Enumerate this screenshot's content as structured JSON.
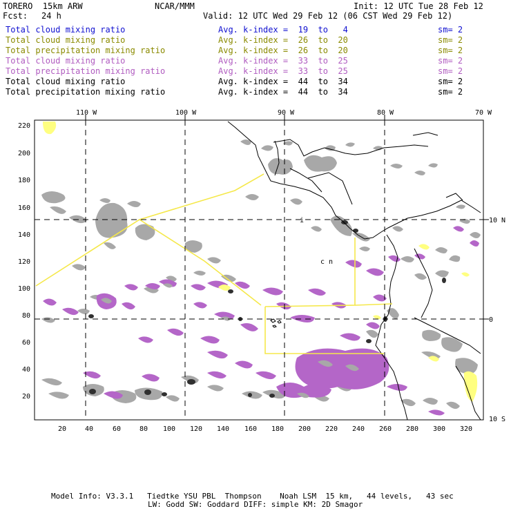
{
  "header": {
    "model": "TORERO  15km ARW",
    "org": "NCAR/MMM",
    "init": "Init: 12 UTC Tue 28 Feb 12",
    "fcst_label": "Fcst:",
    "fcst_value": "24 h",
    "valid": "Valid: 12 UTC Wed 29 Feb 12 (06 CST Wed 29 Feb 12)"
  },
  "legend": [
    {
      "field": "Total cloud mixing ratio",
      "kindex": "Avg. k-index =  19  to   4",
      "sm": "sm= 2",
      "color": "#1010d0"
    },
    {
      "field": "Total cloud mixing ratio",
      "kindex": "Avg. k-index =  26  to  20",
      "sm": "sm= 2",
      "color": "#8a8a00"
    },
    {
      "field": "Total precipitation mixing ratio",
      "kindex": "Avg. k-index =  26  to  20",
      "sm": "sm= 2",
      "color": "#8a8a00"
    },
    {
      "field": "Total cloud mixing ratio",
      "kindex": "Avg. k-index =  33  to  25",
      "sm": "sm= 2",
      "color": "#b05cc0"
    },
    {
      "field": "Total precipitation mixing ratio",
      "kindex": "Avg. k-index =  33  to  25",
      "sm": "sm= 2",
      "color": "#b05cc0"
    },
    {
      "field": "Total cloud mixing ratio",
      "kindex": "Avg. k-index =  44  to  34",
      "sm": "sm= 2",
      "color": "#000000"
    },
    {
      "field": "Total precipitation mixing ratio",
      "kindex": "Avg. k-index =  44  to  34",
      "sm": "sm= 2",
      "color": "#000000"
    }
  ],
  "axes": {
    "top_lon_labels": [
      "110 W",
      "100 W",
      "90 W",
      "80 W",
      "70 W"
    ],
    "right_lat_labels": [
      "10 N",
      "0",
      "10 S"
    ],
    "left_ticks": [
      "220",
      "200",
      "180",
      "160",
      "140",
      "120",
      "100",
      "80",
      "60",
      "40",
      "20"
    ],
    "bottom_ticks": [
      "20",
      "40",
      "60",
      "80",
      "100",
      "120",
      "140",
      "160",
      "180",
      "200",
      "220",
      "240",
      "260",
      "280",
      "300",
      "320"
    ]
  },
  "map_annotations": {
    "letter_i": "i",
    "letters_cn": "c  n"
  },
  "footer": {
    "line1": "Model Info: V3.3.1   Tiedtke YSU PBL  Thompson    Noah LSM  15 km,   44 levels,   43 sec",
    "line2": "LW: Godd SW: Goddard DIFF: simple KM: 2D Smagor"
  },
  "colors": {
    "cloud_gray": "#a8a8a8",
    "dark_core": "#303030",
    "purple_fill": "#b466c8",
    "yellow_fill": "#ffff80",
    "outline_yellow": "#f5e84a"
  }
}
